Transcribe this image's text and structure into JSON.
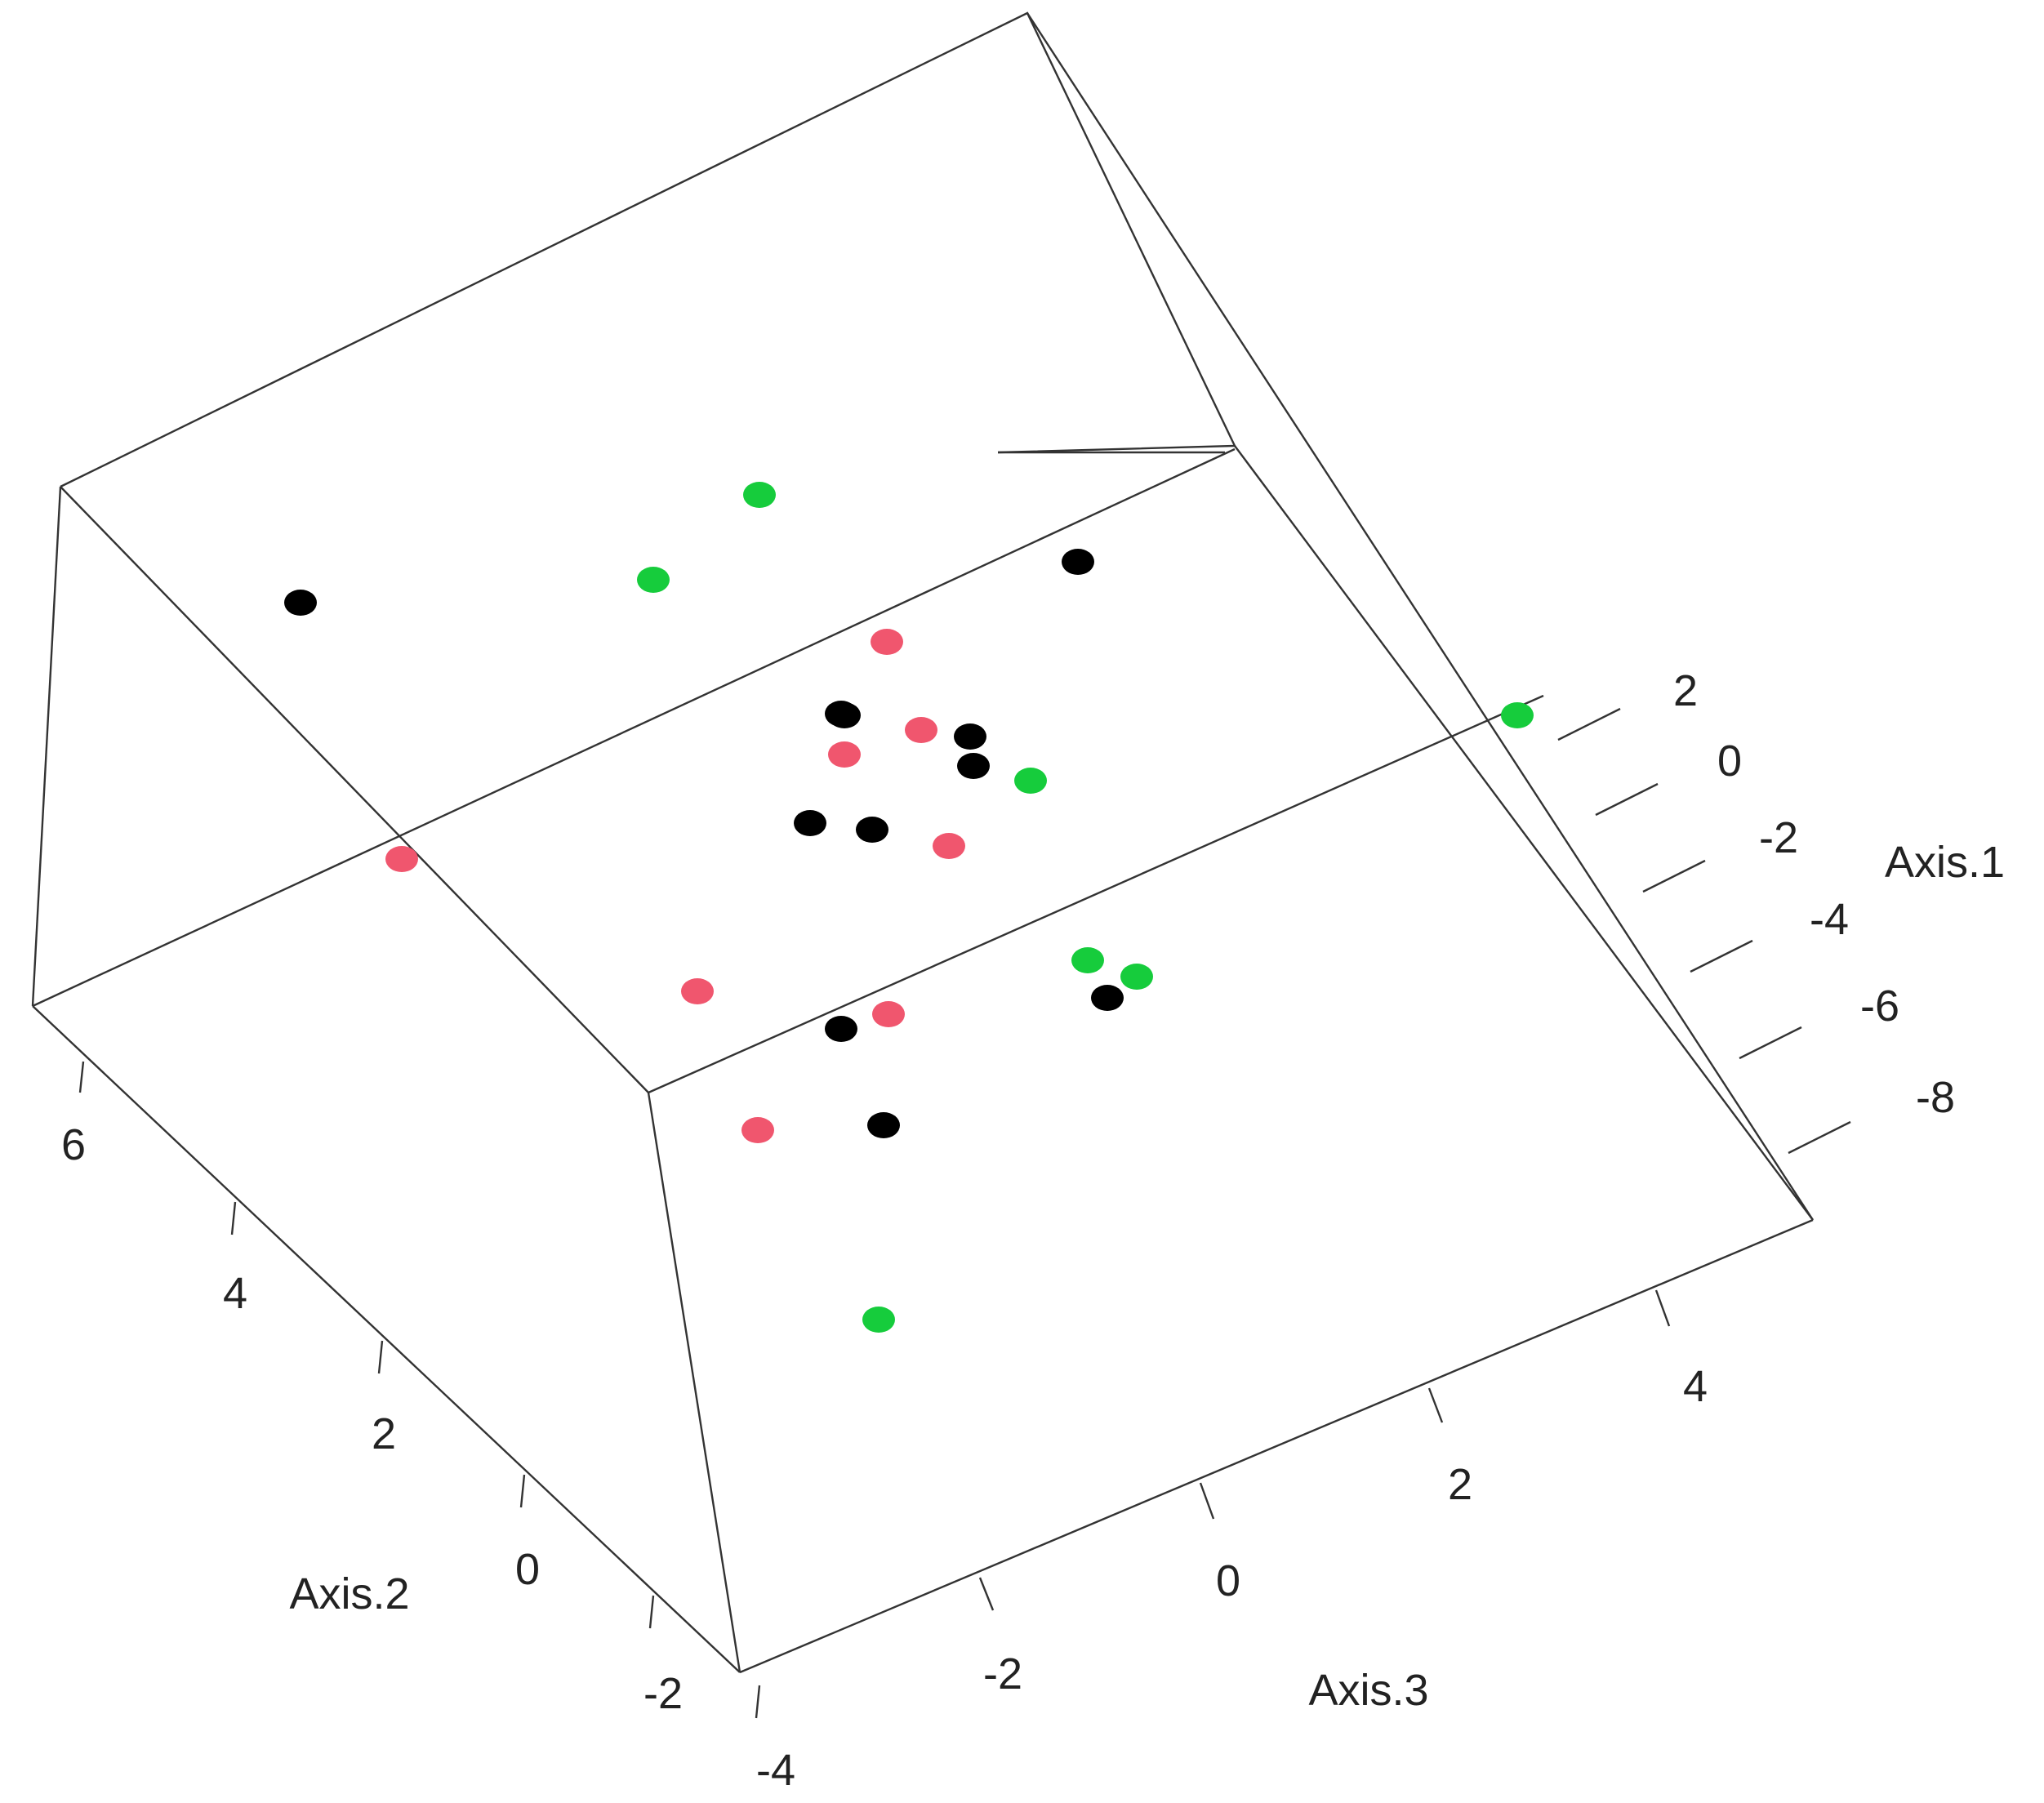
{
  "chart_data": {
    "type": "scatter",
    "dimensions": 3,
    "xlabel": "Axis.2",
    "ylabel": "Axis.3",
    "zlabel": "Axis.1",
    "axis2_ticks": [
      "6",
      "4",
      "2",
      "0",
      "-2",
      "-4"
    ],
    "axis3_ticks": [
      "-2",
      "0",
      "2",
      "4"
    ],
    "axis1_ticks": [
      "2",
      "0",
      "-2",
      "-4",
      "-6",
      "-8"
    ],
    "group_colors": [
      "#000000",
      "#f0566e",
      "#16cc3c"
    ],
    "points": [
      {
        "group": 0
      },
      {
        "group": 0
      },
      {
        "group": 0
      },
      {
        "group": 0
      },
      {
        "group": 0
      },
      {
        "group": 0
      },
      {
        "group": 0
      },
      {
        "group": 0
      },
      {
        "group": 0
      },
      {
        "group": 0
      },
      {
        "group": 0
      },
      {
        "group": 1
      },
      {
        "group": 1
      },
      {
        "group": 1
      },
      {
        "group": 1
      },
      {
        "group": 1
      },
      {
        "group": 1
      },
      {
        "group": 1
      },
      {
        "group": 1
      },
      {
        "group": 2
      },
      {
        "group": 2
      },
      {
        "group": 2
      },
      {
        "group": 2
      },
      {
        "group": 2
      },
      {
        "group": 2
      },
      {
        "group": 2
      }
    ]
  }
}
